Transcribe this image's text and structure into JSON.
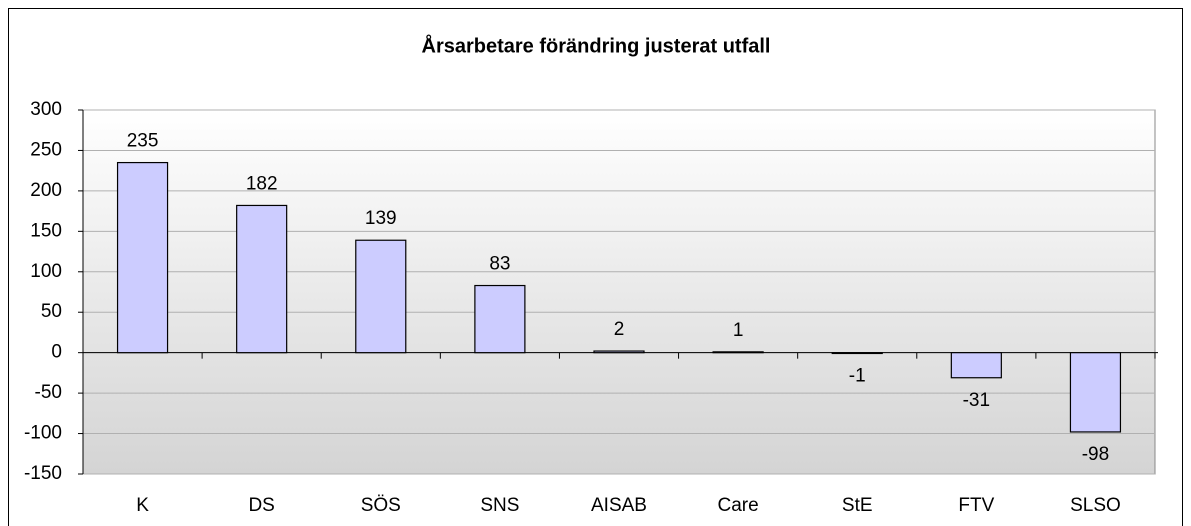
{
  "chart_data": {
    "type": "bar",
    "title": "Årsarbetare förändring justerat utfall",
    "categories": [
      "K",
      "DS",
      "SÖS",
      "SNS",
      "AISAB",
      "Care",
      "StE",
      "FTV",
      "SLSO"
    ],
    "values": [
      235,
      182,
      139,
      83,
      2,
      1,
      -1,
      -31,
      -98
    ],
    "color": "#ccccff",
    "ylim": [
      -150,
      300
    ],
    "yticks": [
      -150,
      -100,
      -50,
      0,
      50,
      100,
      150,
      200,
      250,
      300
    ],
    "grid": true
  }
}
